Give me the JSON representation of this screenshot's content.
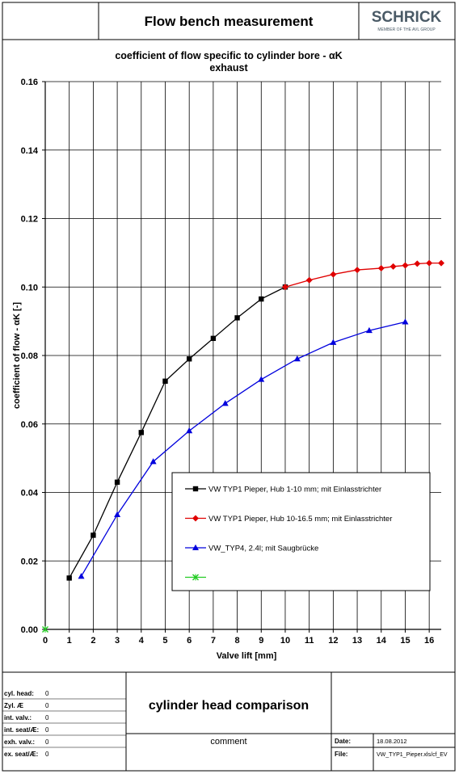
{
  "header": {
    "title": "Flow bench measurement",
    "logo_text": "SCHRICK",
    "logo_subtext": "MEMBER OF THE AVL GROUP"
  },
  "chart_data": {
    "type": "line",
    "title": "coefficient of flow specific to cylinder bore - αK",
    "subtitle": "exhaust",
    "xlabel": "Valve lift [mm]",
    "ylabel": "coefficient of flow - αK [-]",
    "xlim": [
      0,
      16.5
    ],
    "ylim": [
      0,
      0.16
    ],
    "xticks": [
      "0",
      "1",
      "2",
      "3",
      "4",
      "5",
      "6",
      "7",
      "8",
      "9",
      "10",
      "11",
      "12",
      "13",
      "14",
      "15",
      "16"
    ],
    "yticks": [
      "0.00",
      "0.02",
      "0.04",
      "0.06",
      "0.08",
      "0.10",
      "0.12",
      "0.14",
      "0.16"
    ],
    "grid": true,
    "legend_position": "bottom-right",
    "series": [
      {
        "name": "VW TYP1 Pieper, Hub 1-10 mm; mit Einlasstrichter",
        "color": "#000000",
        "marker": "square",
        "x": [
          1,
          2,
          3,
          4,
          5,
          6,
          7,
          8,
          9,
          10
        ],
        "y": [
          0.015,
          0.0275,
          0.043,
          0.0575,
          0.0725,
          0.079,
          0.085,
          0.091,
          0.0965,
          0.1
        ]
      },
      {
        "name": "VW TYP1 Pieper, Hub 10-16.5 mm; mit Einlasstrichter",
        "color": "#e00000",
        "marker": "diamond",
        "x": [
          10,
          11,
          12,
          13,
          14,
          14.5,
          15,
          15.5,
          16,
          16.5
        ],
        "y": [
          0.1,
          0.102,
          0.1037,
          0.105,
          0.1055,
          0.106,
          0.1063,
          0.1068,
          0.107,
          0.107
        ]
      },
      {
        "name": "VW_TYP4, 2.4l; mit Saugbrücke",
        "color": "#0000dd",
        "marker": "triangle",
        "x": [
          1.5,
          3,
          4.5,
          6,
          7.5,
          9,
          10.5,
          12,
          13.5,
          15
        ],
        "y": [
          0.0155,
          0.0335,
          0.049,
          0.058,
          0.066,
          0.073,
          0.079,
          0.0838,
          0.0873,
          0.0898
        ]
      },
      {
        "name": "",
        "color": "#22cc22",
        "marker": "x",
        "x": [
          0
        ],
        "y": [
          0
        ]
      }
    ]
  },
  "footer": {
    "specs": [
      {
        "label": "cyl. head:",
        "value": "0"
      },
      {
        "label": "Zyl. Æ",
        "value": "0"
      },
      {
        "label": "int. valv.:",
        "value": "0"
      },
      {
        "label": "int. seat/Æ:",
        "value": "0"
      },
      {
        "label": "exh. valv.:",
        "value": "0"
      },
      {
        "label": "ex. seat/Æ:",
        "value": "0"
      }
    ],
    "heading": "cylinder head comparison",
    "comment_label": "comment",
    "date_label": "Date:",
    "date_value": "18.08.2012",
    "file_label": "File:",
    "file_value": "VW_TYP1_Pieper.xls/cf_EV"
  }
}
